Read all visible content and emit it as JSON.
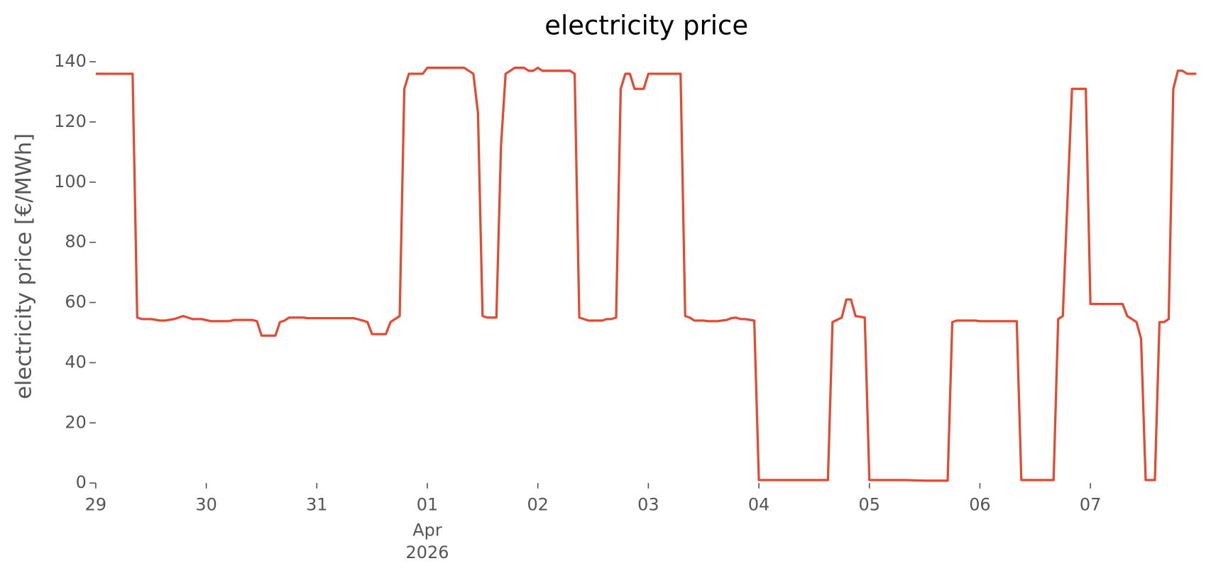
{
  "chart_data": {
    "type": "line",
    "title": "electricity price",
    "y_label": "electricity price [€/MWh]",
    "color": "#e24a33",
    "grid": false,
    "x": [
      "2026-03-29T00:00",
      "2026-03-29T08:00",
      "2026-03-29T09:00",
      "2026-03-29T10:00",
      "2026-03-29T12:00",
      "2026-03-29T14:00",
      "2026-03-29T15:00",
      "2026-03-29T17:00",
      "2026-03-29T19:00",
      "2026-03-29T21:00",
      "2026-03-29T23:00",
      "2026-03-30T01:00",
      "2026-03-30T05:00",
      "2026-03-30T06:00",
      "2026-03-30T10:00",
      "2026-03-30T11:00",
      "2026-03-30T12:00",
      "2026-03-30T15:00",
      "2026-03-30T16:00",
      "2026-03-30T17:00",
      "2026-03-30T18:00",
      "2026-03-30T21:00",
      "2026-03-30T22:00",
      "2026-03-31T08:00",
      "2026-03-31T10:00",
      "2026-03-31T11:00",
      "2026-03-31T12:00",
      "2026-03-31T15:00",
      "2026-03-31T16:00",
      "2026-03-31T18:00",
      "2026-03-31T19:00",
      "2026-03-31T20:00",
      "2026-03-31T23:00",
      "2026-04-01T00:00",
      "2026-04-01T08:00",
      "2026-04-01T10:00",
      "2026-04-01T11:00",
      "2026-04-01T12:00",
      "2026-04-01T13:00",
      "2026-04-01T15:00",
      "2026-04-01T16:00",
      "2026-04-01T17:00",
      "2026-04-01T19:00",
      "2026-04-01T21:00",
      "2026-04-01T22:00",
      "2026-04-01T23:00",
      "2026-04-02T00:00",
      "2026-04-02T01:00",
      "2026-04-02T07:00",
      "2026-04-02T08:00",
      "2026-04-02T09:00",
      "2026-04-02T11:00",
      "2026-04-02T14:00",
      "2026-04-02T15:00",
      "2026-04-02T16:00",
      "2026-04-02T17:00",
      "2026-04-02T18:00",
      "2026-04-02T19:00",
      "2026-04-02T20:00",
      "2026-04-02T21:00",
      "2026-04-02T23:00",
      "2026-04-03T00:00",
      "2026-04-03T07:00",
      "2026-04-03T08:00",
      "2026-04-03T09:00",
      "2026-04-03T10:00",
      "2026-04-03T12:00",
      "2026-04-03T13:00",
      "2026-04-03T15:00",
      "2026-04-03T17:00",
      "2026-04-03T18:00",
      "2026-04-03T19:00",
      "2026-04-03T20:00",
      "2026-04-03T21:00",
      "2026-04-03T23:00",
      "2026-04-04T00:00",
      "2026-04-04T15:00",
      "2026-04-04T16:00",
      "2026-04-04T18:00",
      "2026-04-04T19:00",
      "2026-04-04T20:00",
      "2026-04-04T21:00",
      "2026-04-04T23:00",
      "2026-04-05T00:00",
      "2026-04-05T08:00",
      "2026-04-05T12:00",
      "2026-04-05T17:00",
      "2026-04-05T18:00",
      "2026-04-05T19:00",
      "2026-04-05T23:00",
      "2026-04-06T00:00",
      "2026-04-06T08:00",
      "2026-04-06T09:00",
      "2026-04-06T16:00",
      "2026-04-06T17:00",
      "2026-04-06T18:00",
      "2026-04-06T20:00",
      "2026-04-06T23:00",
      "2026-04-07T00:00",
      "2026-04-07T07:00",
      "2026-04-07T08:00",
      "2026-04-07T10:00",
      "2026-04-07T11:00",
      "2026-04-07T12:00",
      "2026-04-07T14:00",
      "2026-04-07T15:00",
      "2026-04-07T16:00",
      "2026-04-07T17:00",
      "2026-04-07T18:00",
      "2026-04-07T19:00",
      "2026-04-07T20:00",
      "2026-04-07T21:00",
      "2026-04-07T23:00"
    ],
    "values": [
      136,
      136,
      55,
      54.5,
      54.5,
      54,
      54,
      54.5,
      55.5,
      54.5,
      54.5,
      53.8,
      53.8,
      54.2,
      54.2,
      53.8,
      49,
      49,
      53.5,
      54,
      55,
      55,
      54.8,
      54.8,
      54,
      53.5,
      49.5,
      49.5,
      53.5,
      55.5,
      131,
      136,
      136,
      138,
      138,
      136,
      123,
      55.5,
      55,
      55,
      112,
      136,
      138,
      138,
      137,
      137,
      138,
      137,
      137,
      136,
      55,
      54,
      54,
      54.5,
      54.5,
      55,
      131,
      136,
      136,
      131,
      131,
      136,
      136,
      55.5,
      55,
      54,
      54,
      53.8,
      53.8,
      54.2,
      54.8,
      55,
      54.5,
      54.5,
      54,
      1,
      1,
      53.5,
      55,
      61,
      61,
      55.5,
      55,
      1,
      1,
      0.8,
      0.8,
      53.5,
      54,
      54,
      53.8,
      53.8,
      1,
      1,
      54.5,
      55.5,
      131,
      131,
      59.5,
      59.5,
      55.5,
      53.5,
      48,
      1,
      1,
      53.5,
      53.5,
      54.5,
      131,
      137,
      137,
      136,
      136
    ],
    "xlim": [
      "2026-03-29T00:00",
      "2026-04-07T23:00"
    ],
    "xticks": [
      {
        "value": "2026-03-29T00:00",
        "label": "29"
      },
      {
        "value": "2026-03-30T00:00",
        "label": "30"
      },
      {
        "value": "2026-03-31T00:00",
        "label": "31"
      },
      {
        "value": "2026-04-01T00:00",
        "label": "01",
        "sublabels": [
          "Apr",
          "2026"
        ]
      },
      {
        "value": "2026-04-02T00:00",
        "label": "02"
      },
      {
        "value": "2026-04-03T00:00",
        "label": "03"
      },
      {
        "value": "2026-04-04T00:00",
        "label": "04"
      },
      {
        "value": "2026-04-05T00:00",
        "label": "05"
      },
      {
        "value": "2026-04-06T00:00",
        "label": "06"
      },
      {
        "value": "2026-04-07T00:00",
        "label": "07"
      }
    ],
    "ylim": [
      0,
      140
    ],
    "yticks": [
      0,
      20,
      40,
      60,
      80,
      100,
      120,
      140
    ]
  }
}
